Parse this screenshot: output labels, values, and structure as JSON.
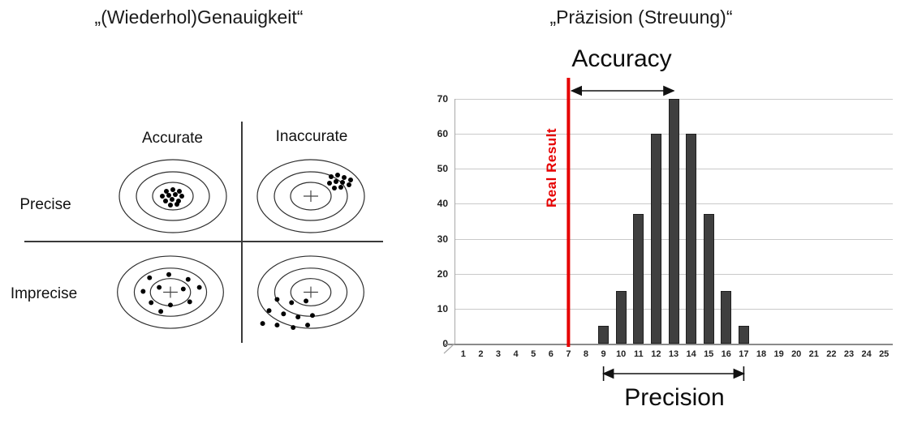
{
  "left_panel": {
    "title": "„(Wiederhol)Genauigkeit“",
    "col_labels": [
      "Accurate",
      "Inaccurate"
    ],
    "row_labels": [
      "Precise",
      "Imprecise"
    ],
    "targets": [
      {
        "name": "precise-accurate",
        "cross": false,
        "dots": [
          [
            62,
            43
          ],
          [
            70,
            41
          ],
          [
            78,
            43
          ],
          [
            57,
            49
          ],
          [
            65,
            48
          ],
          [
            73,
            47
          ],
          [
            81,
            49
          ],
          [
            61,
            55
          ],
          [
            69,
            53
          ],
          [
            77,
            55
          ],
          [
            67,
            60
          ],
          [
            75,
            59
          ]
        ]
      },
      {
        "name": "precise-inaccurate",
        "cross": true,
        "dots": [
          [
            95,
            25
          ],
          [
            103,
            23
          ],
          [
            111,
            26
          ],
          [
            119,
            29
          ],
          [
            93,
            33
          ],
          [
            101,
            31
          ],
          [
            109,
            32
          ],
          [
            117,
            35
          ],
          [
            99,
            39
          ],
          [
            107,
            38
          ]
        ]
      },
      {
        "name": "imprecise-accurate",
        "cross": true,
        "dots": [
          [
            44,
            31
          ],
          [
            68,
            27
          ],
          [
            92,
            33
          ],
          [
            36,
            48
          ],
          [
            56,
            43
          ],
          [
            86,
            45
          ],
          [
            106,
            43
          ],
          [
            46,
            62
          ],
          [
            70,
            65
          ],
          [
            94,
            61
          ],
          [
            58,
            73
          ]
        ]
      },
      {
        "name": "imprecise-inaccurate",
        "cross": true,
        "dots": [
          [
            28,
            58
          ],
          [
            46,
            62
          ],
          [
            64,
            60
          ],
          [
            18,
            72
          ],
          [
            36,
            76
          ],
          [
            54,
            80
          ],
          [
            72,
            78
          ],
          [
            10,
            88
          ],
          [
            28,
            90
          ],
          [
            48,
            93
          ],
          [
            66,
            90
          ]
        ]
      }
    ]
  },
  "right_panel": {
    "title": "„Präzision (Streuung)“",
    "accuracy_label": "Accuracy",
    "precision_label": "Precision",
    "real_result_label": "Real Result"
  },
  "chart_data": {
    "type": "bar",
    "x": [
      1,
      2,
      3,
      4,
      5,
      6,
      7,
      8,
      9,
      10,
      11,
      12,
      13,
      14,
      15,
      16,
      17,
      18,
      19,
      20,
      21,
      22,
      23,
      24,
      25
    ],
    "values": [
      0,
      0,
      0,
      0,
      0,
      0,
      0,
      0,
      5,
      15,
      37,
      60,
      70,
      60,
      37,
      15,
      5,
      0,
      0,
      0,
      0,
      0,
      0,
      0,
      0
    ],
    "y_ticks": [
      0,
      10,
      20,
      30,
      40,
      50,
      60,
      70
    ],
    "ylim": [
      0,
      70
    ],
    "xlabel": "",
    "ylabel": "",
    "grid": true,
    "legend": "none",
    "real_result_x": 7,
    "accuracy_span_x": [
      7,
      13
    ],
    "precision_span_x": [
      9,
      17
    ],
    "bar_color": "#3f3f3f",
    "real_result_color": "#e60000",
    "arrow_color": "#111111"
  }
}
